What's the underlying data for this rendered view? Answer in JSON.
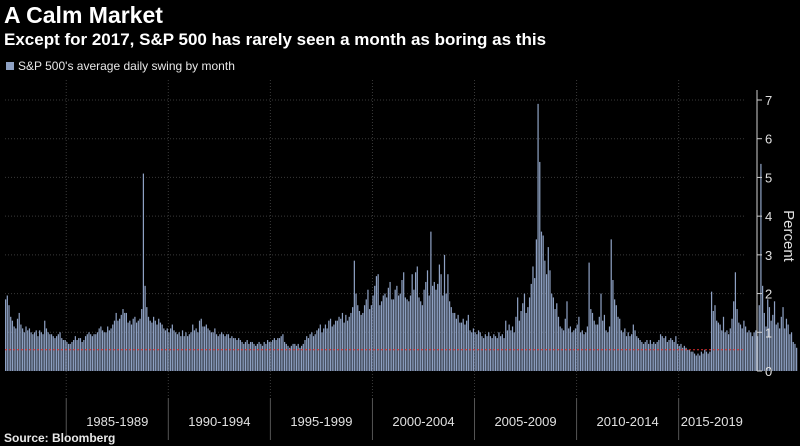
{
  "header": {
    "title": "A Calm Market",
    "subtitle": "Except for 2017, S&P 500 has rarely seen a month as boring as this"
  },
  "footer": {
    "source": "Source: Bloomberg"
  },
  "colors": {
    "bars": "#8ea1c3",
    "refline": "#e03030",
    "background": "#000000",
    "axis": "#cfcfcf"
  },
  "chart_data": {
    "type": "bar",
    "legend": "S&P 500's average daily swing by month",
    "legend_position": "top-left",
    "ylabel": "Percent",
    "ylim": [
      0,
      7.5
    ],
    "yticks": [
      0,
      1,
      2,
      3,
      4,
      5,
      6,
      7
    ],
    "xlim": [
      1982.0,
      2018.25
    ],
    "x_groups": [
      "1985-1989",
      "1990-1994",
      "1995-1999",
      "2000-2004",
      "2005-2009",
      "2010-2014",
      "2015-2019"
    ],
    "x_group_starts": [
      1985,
      1990,
      1995,
      2000,
      2005,
      2010,
      2015
    ],
    "reference_line": 0.55,
    "grid": true,
    "series": [
      {
        "x_start": 1982.0,
        "step_months": 1,
        "values": [
          1.85,
          1.95,
          1.7,
          1.4,
          1.3,
          1.15,
          1.1,
          1.35,
          1.5,
          1.2,
          1.1,
          1.0,
          1.15,
          1.05,
          1.1,
          1.0,
          0.95,
          1.0,
          1.05,
          0.9,
          1.05,
          1.0,
          0.95,
          1.3,
          1.1,
          1.0,
          0.95,
          0.95,
          0.9,
          0.85,
          0.9,
          0.95,
          1.0,
          0.85,
          0.8,
          0.8,
          0.75,
          0.7,
          0.7,
          0.75,
          0.8,
          0.9,
          0.8,
          0.85,
          0.85,
          0.75,
          0.8,
          0.9,
          0.95,
          1.0,
          0.95,
          0.9,
          0.95,
          0.95,
          1.0,
          1.1,
          1.15,
          1.05,
          1.0,
          1.0,
          1.15,
          1.05,
          1.1,
          1.2,
          1.3,
          1.5,
          1.3,
          1.35,
          1.45,
          1.6,
          1.5,
          1.5,
          1.25,
          1.3,
          1.2,
          1.35,
          1.4,
          1.25,
          1.3,
          1.35,
          1.6,
          5.1,
          2.2,
          1.65,
          1.4,
          1.3,
          1.25,
          1.4,
          1.3,
          1.2,
          1.35,
          1.25,
          1.2,
          1.1,
          1.05,
          1.1,
          1.0,
          1.1,
          1.2,
          1.05,
          1.0,
          0.95,
          1.0,
          0.9,
          1.05,
          0.9,
          1.0,
          0.9,
          0.95,
          1.0,
          1.2,
          1.05,
          1.1,
          1.0,
          1.3,
          1.35,
          1.15,
          1.15,
          1.2,
          1.1,
          1.05,
          1.0,
          1.0,
          1.1,
          0.95,
          0.9,
          0.95,
          1.0,
          0.95,
          0.9,
          0.95,
          0.95,
          0.85,
          0.9,
          0.85,
          0.85,
          0.8,
          0.85,
          0.8,
          0.75,
          0.7,
          0.75,
          0.8,
          0.7,
          0.75,
          0.75,
          0.7,
          0.65,
          0.7,
          0.75,
          0.7,
          0.65,
          0.75,
          0.7,
          0.8,
          0.75,
          0.75,
          0.8,
          0.85,
          0.8,
          0.85,
          0.85,
          0.9,
          0.95,
          0.75,
          0.7,
          0.65,
          0.6,
          0.65,
          0.7,
          0.7,
          0.65,
          0.7,
          0.6,
          0.65,
          0.7,
          0.8,
          0.9,
          0.85,
          0.95,
          1.0,
          0.9,
          0.95,
          1.05,
          1.1,
          1.2,
          1.0,
          1.1,
          1.2,
          1.1,
          1.3,
          1.35,
          1.15,
          1.2,
          1.3,
          1.3,
          1.4,
          1.35,
          1.5,
          1.25,
          1.45,
          1.3,
          1.4,
          1.5,
          1.65,
          2.85,
          2.0,
          1.7,
          1.55,
          1.45,
          1.5,
          1.7,
          1.85,
          2.1,
          1.6,
          1.7,
          1.95,
          2.2,
          2.45,
          2.5,
          1.7,
          1.8,
          1.95,
          2.0,
          1.9,
          2.15,
          2.3,
          1.85,
          1.85,
          2.1,
          2.2,
          1.95,
          2.0,
          2.35,
          2.55,
          1.9,
          1.85,
          1.8,
          1.95,
          2.5,
          2.1,
          2.55,
          2.7,
          1.9,
          1.8,
          1.7,
          2.1,
          2.3,
          2.6,
          1.95,
          3.6,
          2.2,
          2.3,
          2.1,
          2.25,
          2.75,
          2.5,
          1.95,
          3.0,
          2.0,
          2.5,
          1.8,
          1.65,
          1.5,
          1.5,
          1.35,
          1.45,
          1.25,
          1.25,
          1.35,
          1.2,
          1.3,
          1.45,
          1.05,
          1.0,
          1.1,
          1.0,
          0.95,
          1.05,
          1.0,
          0.9,
          0.85,
          0.95,
          0.9,
          1.0,
          0.9,
          0.85,
          0.95,
          0.9,
          0.85,
          1.0,
          0.9,
          0.95,
          0.85,
          1.3,
          1.05,
          1.2,
          1.05,
          1.15,
          1.0,
          1.4,
          1.9,
          1.3,
          1.55,
          1.75,
          2.0,
          1.5,
          1.65,
          1.9,
          2.25,
          2.7,
          2.4,
          3.4,
          6.9,
          5.4,
          3.6,
          3.5,
          2.85,
          2.5,
          3.2,
          2.6,
          2.0,
          1.9,
          1.6,
          1.75,
          1.4,
          1.15,
          1.1,
          1.05,
          1.35,
          1.8,
          1.1,
          1.15,
          1.0,
          1.05,
          1.1,
          1.2,
          1.4,
          1.0,
          1.05,
          0.95,
          1.0,
          1.15,
          2.8,
          1.6,
          1.5,
          1.3,
          1.2,
          1.2,
          1.4,
          2.0,
          1.3,
          1.45,
          1.05,
          1.0,
          1.15,
          3.4,
          2.35,
          1.85,
          1.7,
          1.4,
          1.35,
          1.05,
          1.0,
          1.1,
          0.9,
          1.0,
          0.9,
          0.95,
          1.2,
          1.05,
          0.9,
          0.85,
          0.8,
          0.75,
          0.7,
          0.75,
          0.8,
          0.7,
          0.8,
          0.7,
          0.75,
          0.7,
          0.75,
          0.8,
          0.95,
          0.9,
          0.85,
          0.9,
          0.75,
          0.8,
          0.85,
          0.8,
          0.75,
          0.9,
          0.7,
          0.65,
          0.7,
          0.6,
          0.65,
          0.6,
          0.55,
          0.55,
          0.5,
          0.5,
          0.45,
          0.4,
          0.45,
          0.4,
          0.5,
          0.45,
          0.55,
          0.5,
          0.45,
          0.5,
          2.05,
          1.55,
          1.7,
          1.3,
          1.25,
          1.2,
          1.05,
          1.4,
          1.0,
          1.05,
          0.95,
          1.1,
          1.35,
          1.8,
          2.55,
          1.6,
          1.25,
          1.2,
          1.1,
          1.3,
          1.15,
          1.0,
          1.05,
          1.0,
          0.9,
          1.0,
          1.05,
          0.9,
          1.7,
          5.35,
          2.2,
          1.5,
          1.15,
          1.85,
          1.65,
          1.3,
          1.45,
          1.8,
          1.2,
          1.25,
          1.1,
          1.4,
          1.65,
          1.1,
          1.35,
          1.2,
          0.95,
          1.0,
          0.75,
          0.7,
          0.6
        ]
      }
    ]
  }
}
